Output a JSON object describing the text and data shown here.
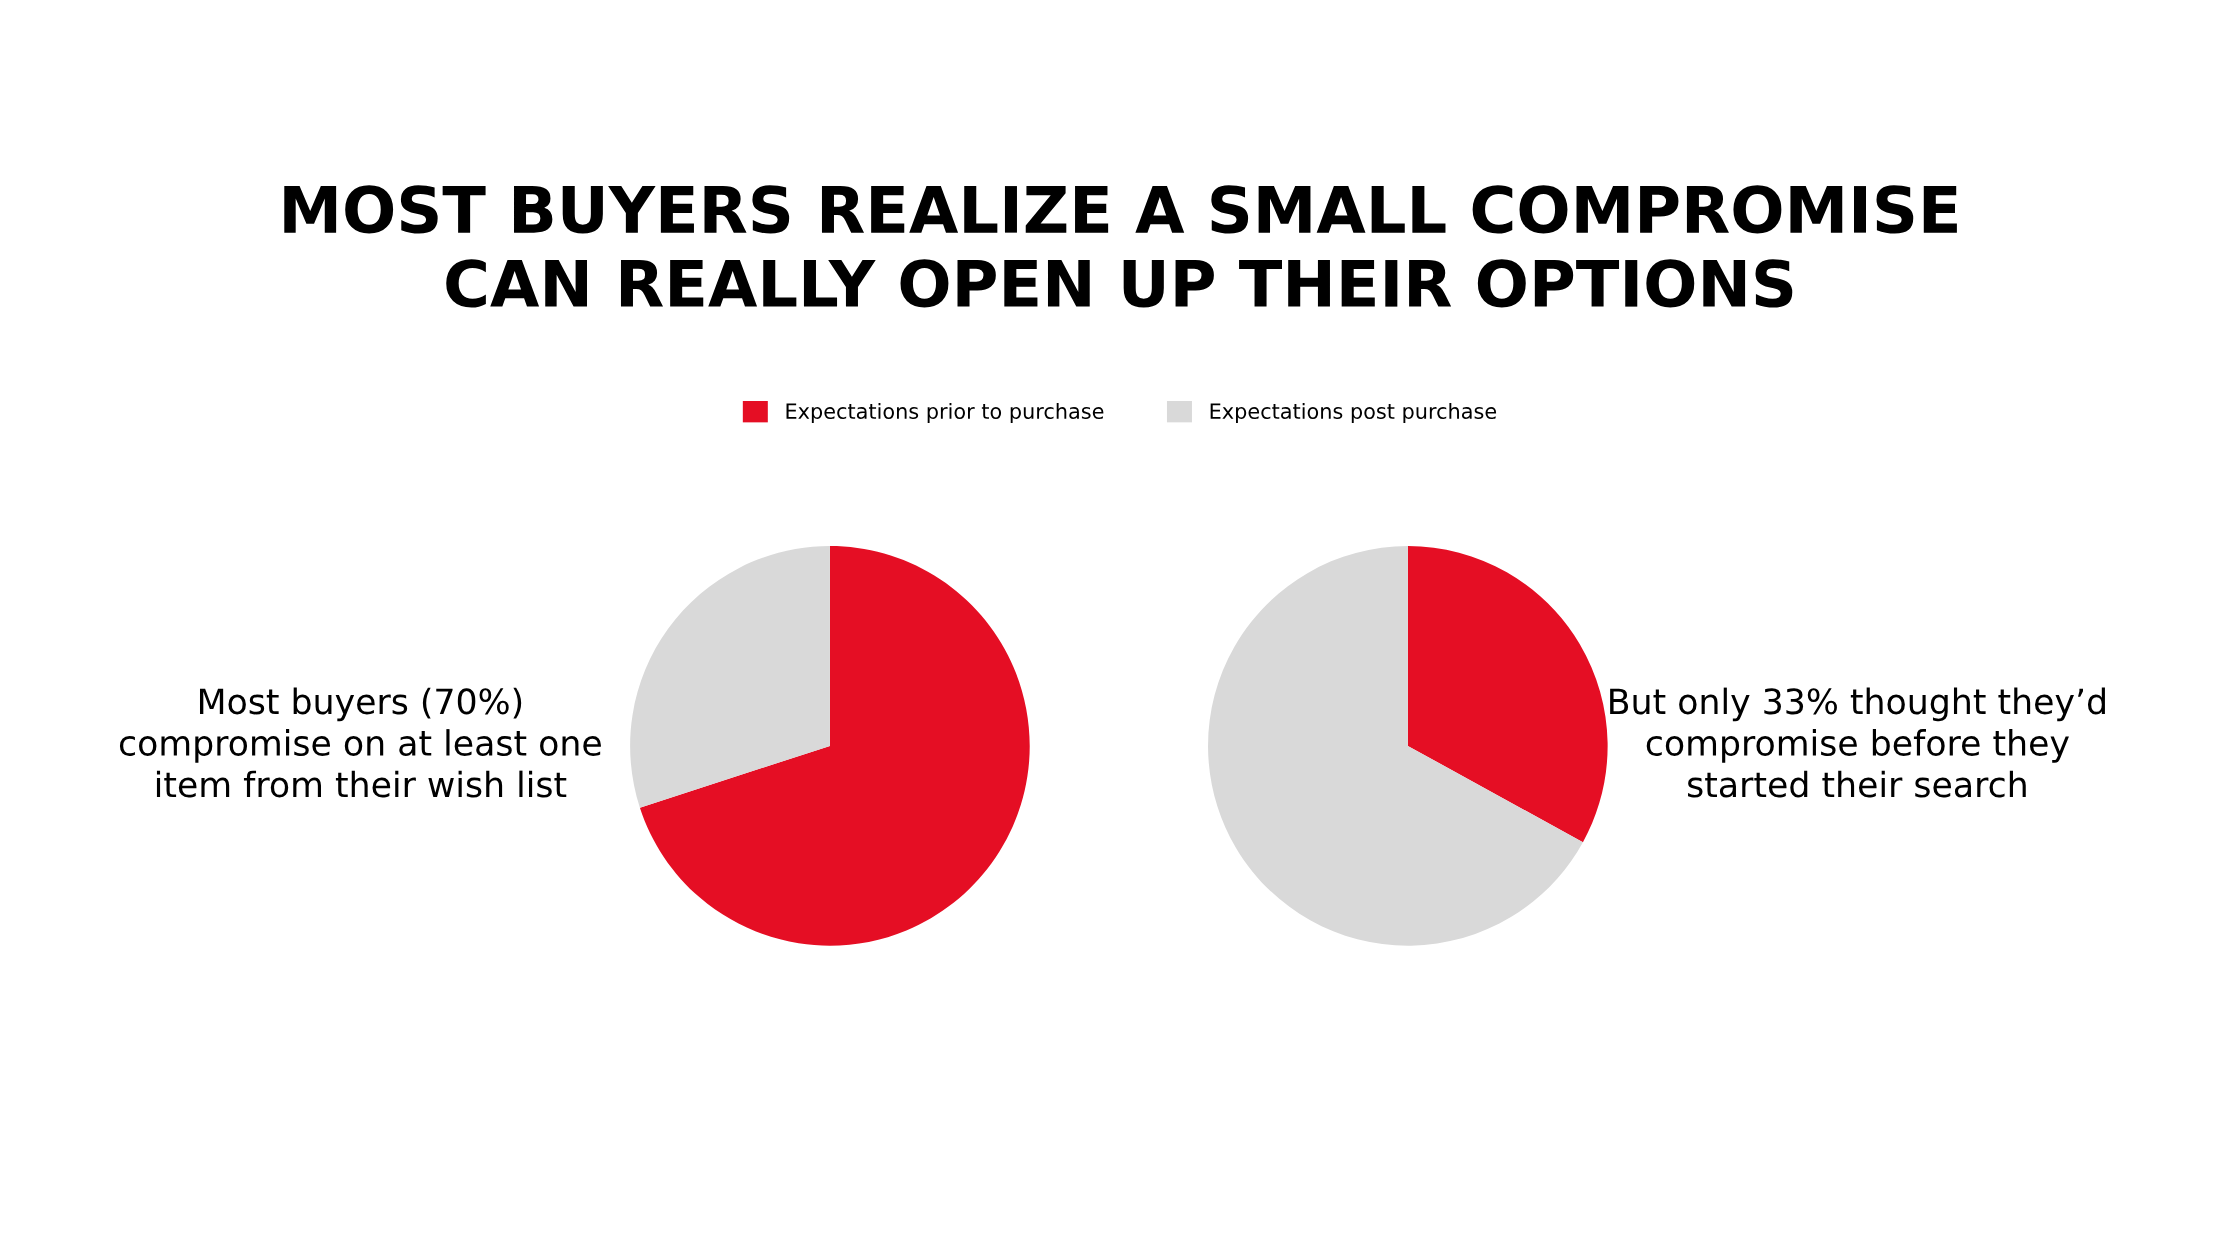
{
  "chart_data": [
    {
      "type": "pie",
      "title": "MOST BUYERS REALIZE A SMALL COMPROMISE\nCAN REALLY OPEN UP THEIR OPTIONS",
      "categories": [
        "Expectations prior to purchase",
        "Expectations post purchase"
      ],
      "values": [
        70,
        30
      ],
      "colors": [
        "#e50e24",
        "#d9d9d9"
      ],
      "legend": "top",
      "annotations": [
        "Most buyers (70%)\ncompromise on at least one\nitem from their wish list"
      ]
    },
    {
      "type": "pie",
      "categories": [
        null,
        null
      ],
      "values": [
        33,
        67
      ],
      "colors": [
        "#e50e24",
        "#d9d9d9"
      ],
      "annotations": [
        "But only 33% thought they’d\ncompromise before they\nstarted their search"
      ]
    }
  ]
}
